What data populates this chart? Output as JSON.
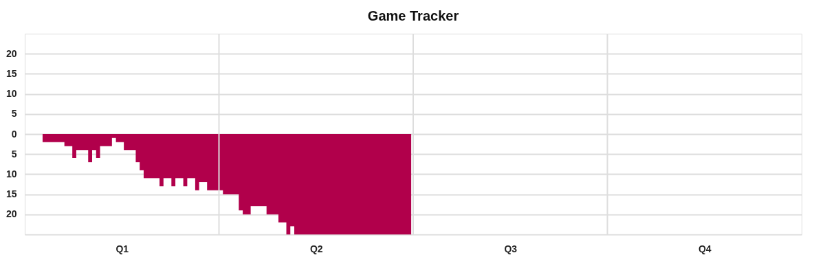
{
  "chart_data": {
    "type": "area",
    "title": "Game Tracker",
    "categories": [
      null,
      null,
      null,
      null,
      null,
      null,
      null,
      null,
      null,
      null,
      null,
      null,
      null,
      null,
      null,
      null,
      null,
      null,
      null,
      null,
      null,
      null,
      null,
      null,
      "Q1",
      null,
      null,
      null,
      null,
      null,
      null,
      null,
      null,
      null,
      null,
      null,
      null,
      null,
      null,
      null,
      null,
      null,
      null,
      null,
      null,
      null,
      null,
      null,
      null,
      null,
      null,
      null,
      null,
      null,
      null,
      null,
      null,
      null,
      null,
      null,
      null,
      null,
      null,
      null,
      null,
      null,
      null,
      null,
      null,
      null,
      null,
      null,
      null,
      "Q2",
      null,
      null,
      null,
      null,
      null,
      null,
      null,
      null,
      null,
      null,
      null,
      null,
      null,
      null,
      null,
      null,
      null,
      null,
      null,
      null,
      null,
      null,
      null,
      null,
      null,
      null,
      null,
      null,
      null,
      null,
      null,
      null,
      null,
      null,
      null,
      null,
      null,
      null,
      null,
      null,
      null,
      null,
      null,
      null,
      null,
      null,
      null,
      null,
      "Q3",
      null,
      null,
      null,
      null,
      null,
      null,
      null,
      null,
      null,
      null,
      null,
      null,
      null,
      null,
      null,
      null,
      null,
      null,
      null,
      null,
      null,
      null,
      null,
      null,
      null,
      null,
      null,
      null,
      null,
      null,
      null,
      null,
      null,
      null,
      null,
      null,
      null,
      null,
      null,
      null,
      null,
      null,
      null,
      null,
      null,
      null,
      null,
      null,
      "Q4",
      null,
      null,
      null,
      null,
      null,
      null,
      null,
      null,
      null,
      null,
      null,
      null,
      null,
      null,
      null,
      null,
      null,
      null,
      null,
      null,
      null,
      null,
      null,
      null
    ],
    "series": [
      {
        "color": "#b1004b",
        "values": [
          null,
          null,
          null,
          null,
          -2,
          -2,
          -2,
          -2,
          -2,
          -2,
          -3,
          -3,
          -6,
          -4,
          -4,
          -4,
          -7,
          -4,
          -6,
          -3,
          -3,
          -3,
          -1,
          -2,
          -2,
          -4,
          -4,
          -4,
          -7,
          -9,
          -11,
          -11,
          -11,
          -11,
          -13,
          -11,
          -11,
          -13,
          -11,
          -11,
          -13,
          -11,
          -11,
          -14,
          -12,
          -12,
          -14,
          -14,
          -14,
          -14,
          -15,
          -15,
          -15,
          -15,
          -19,
          -20,
          -20,
          -18,
          -18,
          -18,
          -18,
          -20,
          -20,
          -20,
          -22,
          -22,
          -25,
          -23,
          -25,
          -25,
          -25,
          -25,
          -25,
          -25,
          -25,
          -25,
          -25,
          -25,
          -25,
          -25,
          -25,
          -25,
          -25,
          -25,
          -25,
          -25,
          -25,
          -25,
          -25,
          -25,
          -25,
          -25,
          -25,
          -25,
          -25,
          -25,
          -25,
          -25,
          null,
          null,
          null,
          null,
          null,
          null,
          null,
          null,
          null,
          null,
          null,
          null,
          null,
          null,
          null,
          null,
          null,
          null,
          null,
          null,
          null,
          null,
          null,
          null,
          null,
          null,
          null,
          null,
          null,
          null,
          null,
          null,
          null,
          null,
          null,
          null,
          null,
          null,
          null,
          null,
          null,
          null,
          null,
          null,
          null,
          null,
          null,
          null,
          null,
          null,
          null,
          null,
          null,
          null,
          null,
          null,
          null,
          null,
          null,
          null,
          null,
          null,
          null,
          null,
          null,
          null,
          null,
          null,
          null,
          null,
          null,
          null,
          null,
          null,
          null,
          null,
          null,
          null,
          null,
          null,
          null,
          null,
          null,
          null,
          null,
          null,
          null,
          null,
          null,
          null,
          null,
          null,
          null,
          null,
          null,
          null,
          null,
          null
        ]
      }
    ],
    "ylim": [
      -25,
      25
    ],
    "yticks": [
      {
        "value": -25,
        "label": null
      },
      {
        "value": -20,
        "label": "20"
      },
      {
        "value": -15,
        "label": "15"
      },
      {
        "value": -10,
        "label": "10"
      },
      {
        "value": -5,
        "label": "5"
      },
      0,
      5,
      10,
      15,
      20
    ],
    "grid": "y"
  }
}
